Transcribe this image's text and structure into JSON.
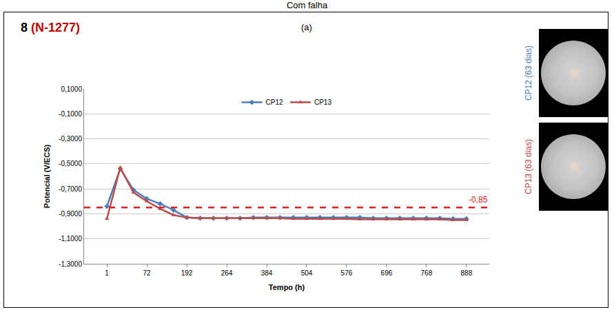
{
  "header": {
    "text": "Com falha"
  },
  "chart_data": {
    "type": "line",
    "panel_label": "(a)",
    "heading": {
      "number": "8",
      "code": "(N-1277)"
    },
    "x_label": "Tempo (h)",
    "y_label": "Potencial (V/ECS)",
    "categories": [
      "1",
      null,
      null,
      "72",
      null,
      null,
      "192",
      null,
      null,
      "264",
      null,
      null,
      "384",
      null,
      null,
      "504",
      null,
      null,
      "576",
      null,
      null,
      "696",
      null,
      null,
      "768",
      null,
      null,
      "888"
    ],
    "series": [
      {
        "name": "CP12",
        "color": "#4a7ebb",
        "marker": "diamond",
        "values": [
          -0.84,
          -0.54,
          -0.71,
          -0.78,
          -0.82,
          -0.87,
          -0.93,
          -0.935,
          -0.935,
          -0.935,
          -0.935,
          -0.93,
          -0.93,
          -0.93,
          -0.93,
          -0.93,
          -0.93,
          -0.93,
          -0.93,
          -0.93,
          -0.935,
          -0.935,
          -0.935,
          -0.935,
          -0.935,
          -0.935,
          -0.94,
          -0.94
        ]
      },
      {
        "name": "CP13",
        "color": "#be4b48",
        "marker": "triangle",
        "values": [
          -0.94,
          -0.53,
          -0.73,
          -0.8,
          -0.86,
          -0.91,
          -0.93,
          -0.935,
          -0.935,
          -0.935,
          -0.935,
          -0.935,
          -0.935,
          -0.935,
          -0.94,
          -0.94,
          -0.94,
          -0.94,
          -0.94,
          -0.945,
          -0.945,
          -0.945,
          -0.945,
          -0.945,
          -0.945,
          -0.945,
          -0.95,
          -0.95
        ]
      }
    ],
    "threshold": {
      "value": -0.85,
      "label": "-0,85",
      "color": "#e02020",
      "line_style": "dash"
    },
    "ylim": [
      -1.3,
      0.1
    ],
    "yticks": [
      {
        "value": 0.1,
        "label": "0,1000"
      },
      {
        "value": -0.1,
        "label": "-0,1000"
      },
      {
        "value": -0.3,
        "label": "-0,3000"
      },
      {
        "value": -0.5,
        "label": "-0,5000"
      },
      {
        "value": -0.7,
        "label": "-0,7000"
      },
      {
        "value": -0.9,
        "label": "-0,9000"
      },
      {
        "value": -1.1,
        "label": "-1,1000"
      },
      {
        "value": -1.3,
        "label": "-1,3000"
      }
    ],
    "grid": true,
    "legend": "top"
  },
  "photos": [
    {
      "label": "CP12 (63 dias)"
    },
    {
      "label": "CP13 (63 dias)"
    }
  ]
}
